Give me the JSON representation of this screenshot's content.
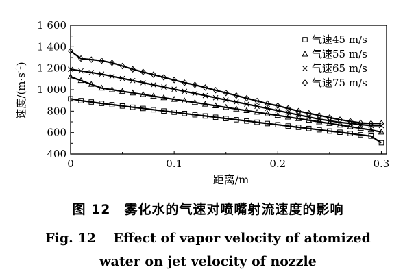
{
  "chart_data": {
    "type": "line",
    "xlabel": "距离/m",
    "ylabel": "速度/(m·s",
    "ylabel_sup": "-1",
    "ylabel_close": ")",
    "xlim": [
      0,
      0.305
    ],
    "ylim": [
      400,
      1600
    ],
    "x_ticks": [
      0,
      0.1,
      0.2,
      0.3
    ],
    "x_tick_labels": [
      "0",
      "0.1",
      "0.2",
      "0.3"
    ],
    "y_ticks": [
      400,
      600,
      800,
      1000,
      1200,
      1400,
      1600
    ],
    "y_tick_labels": [
      "400",
      "600",
      "800",
      "1 000",
      "1 200",
      "1 400",
      "1 600"
    ],
    "grid": false,
    "legend_position": "top-right",
    "series": [
      {
        "name": "气速45 m/s",
        "marker": "square",
        "x": [
          0,
          0.01,
          0.02,
          0.03,
          0.04,
          0.05,
          0.06,
          0.07,
          0.08,
          0.09,
          0.1,
          0.11,
          0.12,
          0.13,
          0.14,
          0.15,
          0.16,
          0.17,
          0.18,
          0.19,
          0.2,
          0.21,
          0.22,
          0.23,
          0.24,
          0.25,
          0.26,
          0.27,
          0.28,
          0.29,
          0.3
        ],
        "y": [
          915,
          898,
          885,
          872,
          860,
          848,
          836,
          825,
          813,
          801,
          790,
          778,
          766,
          755,
          743,
          731,
          720,
          708,
          696,
          684,
          673,
          661,
          649,
          638,
          626,
          614,
          603,
          591,
          579,
          567,
          505
        ]
      },
      {
        "name": "气速55 m/s",
        "marker": "triangle",
        "x": [
          0,
          0.01,
          0.02,
          0.03,
          0.04,
          0.05,
          0.06,
          0.07,
          0.08,
          0.09,
          0.1,
          0.11,
          0.12,
          0.13,
          0.14,
          0.15,
          0.16,
          0.17,
          0.18,
          0.19,
          0.2,
          0.21,
          0.22,
          0.23,
          0.24,
          0.25,
          0.26,
          0.27,
          0.28,
          0.29,
          0.3
        ],
        "y": [
          1120,
          1085,
          1050,
          1015,
          1000,
          985,
          970,
          955,
          940,
          925,
          910,
          895,
          880,
          865,
          850,
          835,
          820,
          805,
          790,
          775,
          760,
          745,
          730,
          715,
          700,
          685,
          670,
          655,
          640,
          625,
          605
        ]
      },
      {
        "name": "气速65 m/s",
        "marker": "cross",
        "x": [
          0,
          0.01,
          0.02,
          0.03,
          0.04,
          0.05,
          0.06,
          0.07,
          0.08,
          0.09,
          0.1,
          0.11,
          0.12,
          0.13,
          0.14,
          0.15,
          0.16,
          0.17,
          0.18,
          0.19,
          0.2,
          0.21,
          0.22,
          0.23,
          0.24,
          0.25,
          0.26,
          0.27,
          0.28,
          0.29,
          0.3
        ],
        "y": [
          1190,
          1175,
          1160,
          1145,
          1125,
          1105,
          1085,
          1065,
          1045,
          1025,
          1005,
          985,
          965,
          945,
          925,
          905,
          885,
          865,
          845,
          825,
          805,
          785,
          765,
          745,
          725,
          710,
          695,
          685,
          675,
          665,
          665
        ]
      },
      {
        "name": "气速75 m/s",
        "marker": "diamond",
        "x": [
          0,
          0.01,
          0.02,
          0.03,
          0.04,
          0.05,
          0.06,
          0.07,
          0.08,
          0.09,
          0.1,
          0.11,
          0.12,
          0.13,
          0.14,
          0.15,
          0.16,
          0.17,
          0.18,
          0.19,
          0.2,
          0.21,
          0.22,
          0.23,
          0.24,
          0.25,
          0.26,
          0.27,
          0.28,
          0.29,
          0.3
        ],
        "y": [
          1360,
          1290,
          1280,
          1270,
          1250,
          1220,
          1190,
          1165,
          1140,
          1115,
          1090,
          1065,
          1045,
          1020,
          995,
          970,
          945,
          920,
          895,
          870,
          850,
          825,
          800,
          780,
          760,
          740,
          720,
          705,
          690,
          685,
          685
        ]
      }
    ]
  },
  "caption": {
    "cn": "图 12　雾化水的气速对喷嘴射流速度的影响",
    "en_line1": "Fig. 12　 Effect of vapor velocity of atomized",
    "en_line2": "water on jet velocity of nozzle"
  }
}
